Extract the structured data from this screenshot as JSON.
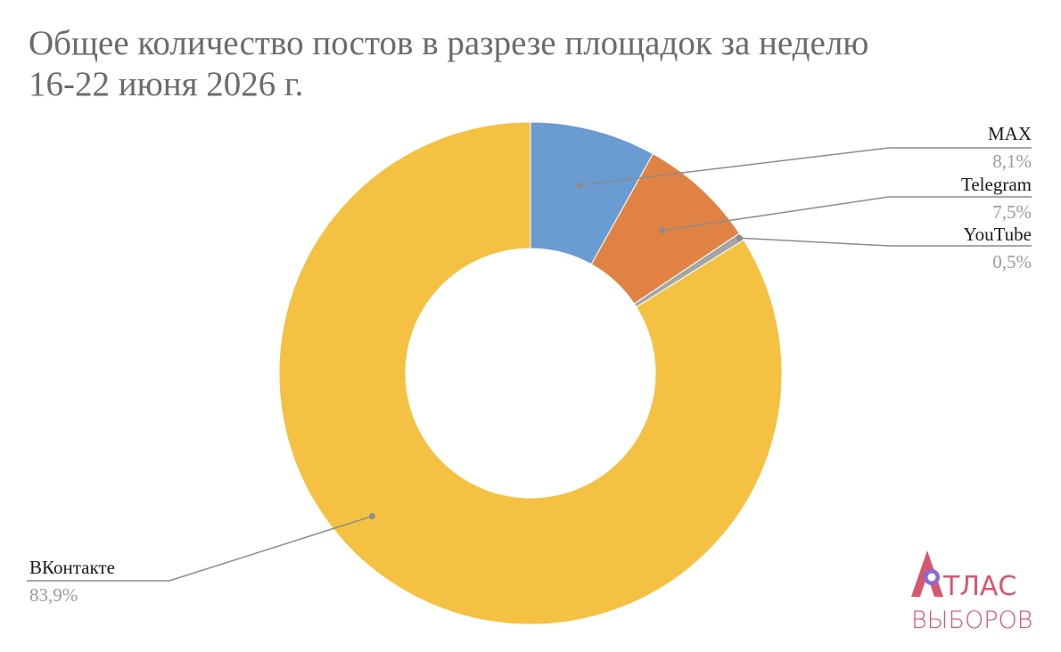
{
  "chart_data": {
    "type": "pie",
    "title_line1": "Общее количество постов в разрезе площадок за неделю",
    "title_line2": "16-22 июня 2026 г.",
    "slices": [
      {
        "label": "MAX",
        "value": 8.1,
        "value_label": "8,1%",
        "color": "#6a9bd1"
      },
      {
        "label": "Telegram",
        "value": 7.5,
        "value_label": "7,5%",
        "color": "#e08243"
      },
      {
        "label": "YouTube",
        "value": 0.5,
        "value_label": "0,5%",
        "color": "#a5a5a5"
      },
      {
        "label": "ВКонтакте",
        "value": 83.9,
        "value_label": "83,9%",
        "color": "#f4c142"
      }
    ],
    "donut": true,
    "leader_lines": true
  },
  "logo": {
    "line1": "АТЛАС",
    "line2": "ВЫБОРОВ",
    "color": "#d8566f",
    "accent": "#8a6bd6"
  }
}
